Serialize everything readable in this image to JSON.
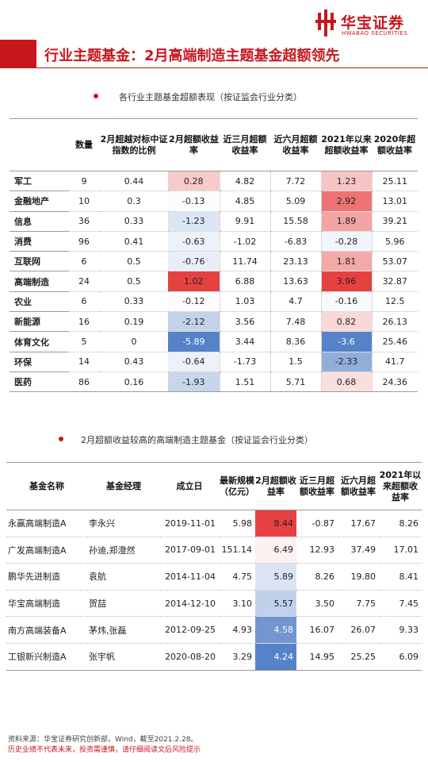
{
  "brand": {
    "name_cn": "华宝证券",
    "name_en": "HWABAO SECURITIES",
    "color": "#c8161d"
  },
  "page_title": "行业主题基金：2月高端制造主题基金超额领先",
  "table1": {
    "caption": "各行业主题基金超额表现（按证监会行业分类）",
    "headers": [
      "",
      "数量",
      "2月超越对标中证指数的比例",
      "2月超额收益率",
      "近三月超额收益率",
      "近六月超额收益率",
      "2021年以来超额收益率",
      "2020年超额收益率"
    ],
    "rows": [
      {
        "name": "军工",
        "count": "9",
        "ratio": "0.44",
        "feb": "0.28",
        "m3": "4.82",
        "m6": "7.72",
        "ytd": "1.23",
        "y2020": "25.11"
      },
      {
        "name": "金融地产",
        "count": "10",
        "ratio": "0.3",
        "feb": "-0.13",
        "m3": "4.85",
        "m6": "5.09",
        "ytd": "2.92",
        "y2020": "13.01"
      },
      {
        "name": "信息",
        "count": "36",
        "ratio": "0.33",
        "feb": "-1.23",
        "m3": "9.91",
        "m6": "15.58",
        "ytd": "1.89",
        "y2020": "39.21"
      },
      {
        "name": "消费",
        "count": "96",
        "ratio": "0.41",
        "feb": "-0.63",
        "m3": "-1.02",
        "m6": "-6.83",
        "ytd": "-0.28",
        "y2020": "5.96"
      },
      {
        "name": "互联网",
        "count": "6",
        "ratio": "0.5",
        "feb": "-0.76",
        "m3": "11.74",
        "m6": "23.13",
        "ytd": "1.81",
        "y2020": "53.07"
      },
      {
        "name": "高端制造",
        "count": "24",
        "ratio": "0.5",
        "feb": "1.02",
        "m3": "6.88",
        "m6": "13.63",
        "ytd": "3.96",
        "y2020": "32.87"
      },
      {
        "name": "农业",
        "count": "6",
        "ratio": "0.33",
        "feb": "-0.12",
        "m3": "1.03",
        "m6": "4.7",
        "ytd": "-0.16",
        "y2020": "12.5"
      },
      {
        "name": "新能源",
        "count": "16",
        "ratio": "0.19",
        "feb": "-2.12",
        "m3": "3.56",
        "m6": "7.48",
        "ytd": "0.82",
        "y2020": "26.13"
      },
      {
        "name": "体育文化",
        "count": "5",
        "ratio": "0",
        "feb": "-5.89",
        "m3": "3.44",
        "m6": "8.36",
        "ytd": "-3.6",
        "y2020": "25.46"
      },
      {
        "name": "环保",
        "count": "14",
        "ratio": "0.43",
        "feb": "-0.64",
        "m3": "-1.73",
        "m6": "1.5",
        "ytd": "-2.33",
        "y2020": "41.7"
      },
      {
        "name": "医药",
        "count": "86",
        "ratio": "0.16",
        "feb": "-1.93",
        "m3": "1.51",
        "m6": "5.71",
        "ytd": "0.68",
        "y2020": "24.36"
      }
    ]
  },
  "table2": {
    "caption": "2月超额收益较高的高端制造主题基金（按证监会行业分类）",
    "headers": [
      "基金名称",
      "基金经理",
      "成立日",
      "最新规模（亿元）",
      "2月超额收益率",
      "近三月超额收益率",
      "近六月超额收益率",
      "2021年以来超额收益率"
    ],
    "rows": [
      {
        "fund": "永赢高端制造A",
        "manager": "李永兴",
        "date": "2019-11-01",
        "size": "5.98",
        "feb": "8.44",
        "m3": "-0.87",
        "m6": "17.67",
        "ytd": "8.26"
      },
      {
        "fund": "广发高端制造A",
        "manager": "孙迪,郑澄然",
        "date": "2017-09-01",
        "size": "151.14",
        "feb": "6.49",
        "m3": "12.93",
        "m6": "37.49",
        "ytd": "17.01"
      },
      {
        "fund": "鹏华先进制造",
        "manager": "袁航",
        "date": "2014-11-04",
        "size": "4.75",
        "feb": "5.89",
        "m3": "8.26",
        "m6": "19.80",
        "ytd": "8.41"
      },
      {
        "fund": "华宝高端制造",
        "manager": "贺喆",
        "date": "2014-12-10",
        "size": "3.10",
        "feb": "5.57",
        "m3": "3.50",
        "m6": "7.75",
        "ytd": "7.45"
      },
      {
        "fund": "南方高端装备A",
        "manager": "茅炜,张磊",
        "date": "2012-09-25",
        "size": "4.93",
        "feb": "4.58",
        "m3": "16.07",
        "m6": "26.07",
        "ytd": "9.33"
      },
      {
        "fund": "工银新兴制造A",
        "manager": "张宇帆",
        "date": "2020-08-20",
        "size": "3.29",
        "feb": "4.24",
        "m3": "14.95",
        "m6": "25.25",
        "ytd": "6.09"
      }
    ]
  },
  "footer": {
    "source": "资料来源：华宝证券研究创新部，Wind，截至2021.2.28。",
    "warning": "历史业绩不代表未来，投资需谨慎，请仔细阅读文后风险提示"
  }
}
